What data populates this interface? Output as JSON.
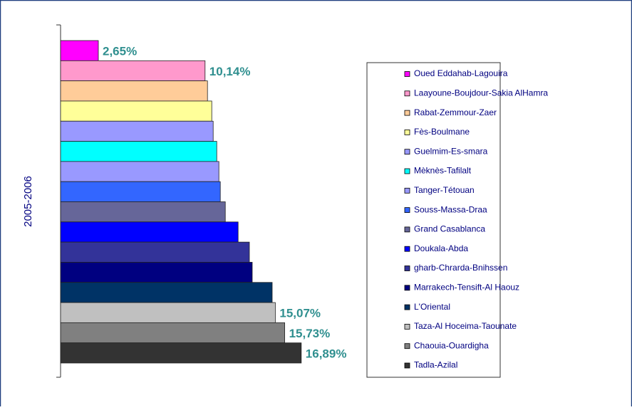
{
  "chart_data": {
    "type": "bar",
    "orientation": "horizontal",
    "ylabel": "2005-2006",
    "categories": [
      "Oued Eddahab-Lagouira",
      "Laayoune-Boujdour-Sakia AlHamra",
      "Rabat-Zemmour-Zaer",
      "Fès-Boulmane",
      "Guelmim-Es-smara",
      "Mèknès-Tafilalt",
      "Tanger-Tétouan",
      "Souss-Massa-Draa",
      "Grand Casablanca",
      "Doukala-Abda",
      "gharb-Chrarda-Bnihssen",
      "Marrakech-Tensift-Al Haouz",
      "L'Oriental",
      "Taza-Al Hoceima-Taounate",
      "Chaouia-Ouardigha",
      "Tadla-Azilal"
    ],
    "values": [
      2.65,
      10.14,
      10.31,
      10.61,
      10.71,
      10.96,
      11.11,
      11.21,
      11.56,
      12.46,
      13.25,
      13.45,
      14.85,
      15.07,
      15.73,
      16.89
    ],
    "value_labels": [
      "2,65%",
      "10,14%",
      null,
      null,
      null,
      null,
      null,
      null,
      null,
      null,
      null,
      null,
      null,
      "15,07%",
      "15,73%",
      "16,89%"
    ],
    "colors": [
      "#ff00ff",
      "#ff99cc",
      "#ffcc99",
      "#ffff99",
      "#9999ff",
      "#00ffff",
      "#9999ff",
      "#3366ff",
      "#666699",
      "#0000ff",
      "#333399",
      "#000080",
      "#003366",
      "#c0c0c0",
      "#808080",
      "#333333"
    ],
    "xlim": [
      0,
      20
    ]
  }
}
